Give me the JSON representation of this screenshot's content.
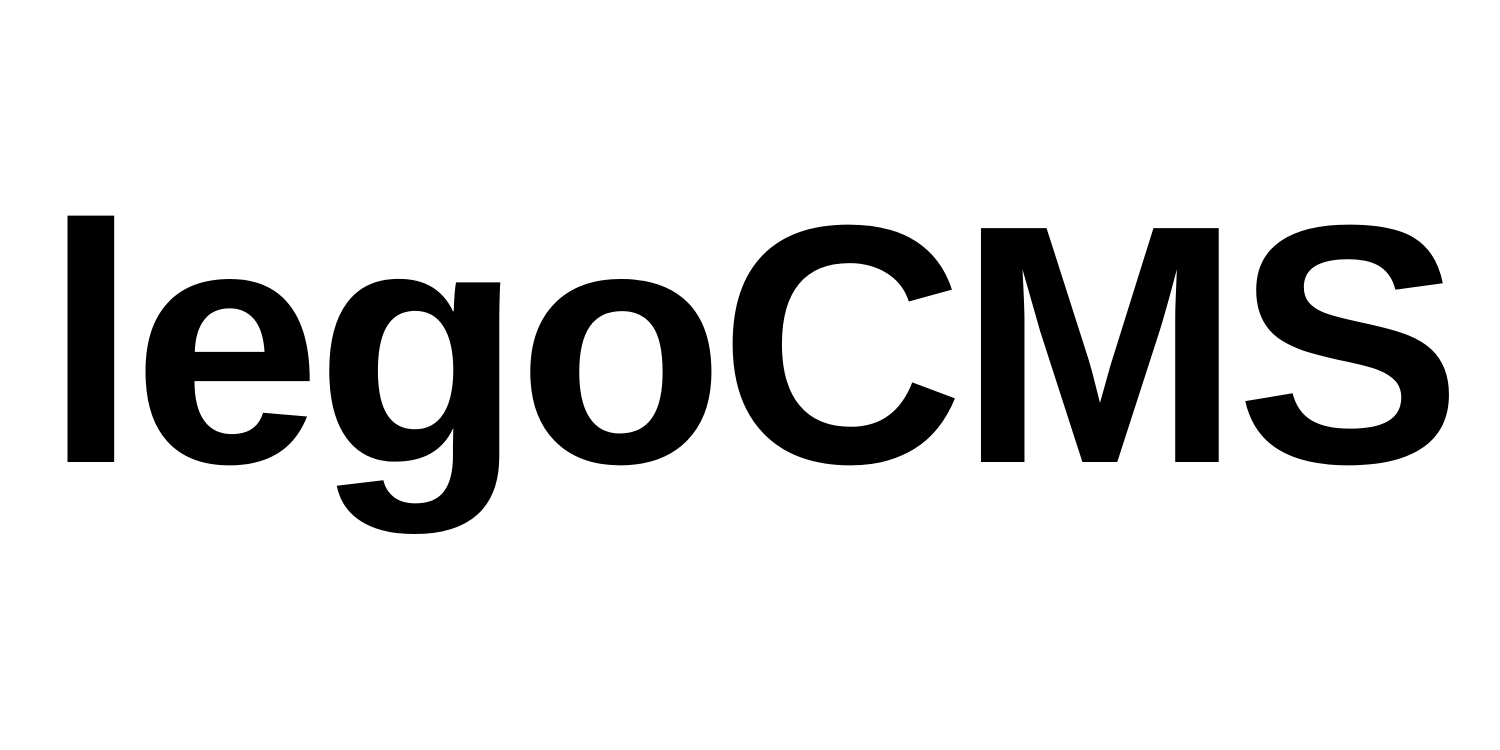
{
  "logo": {
    "text": "legoCMS",
    "color": "#000000",
    "background": "#ffffff"
  }
}
